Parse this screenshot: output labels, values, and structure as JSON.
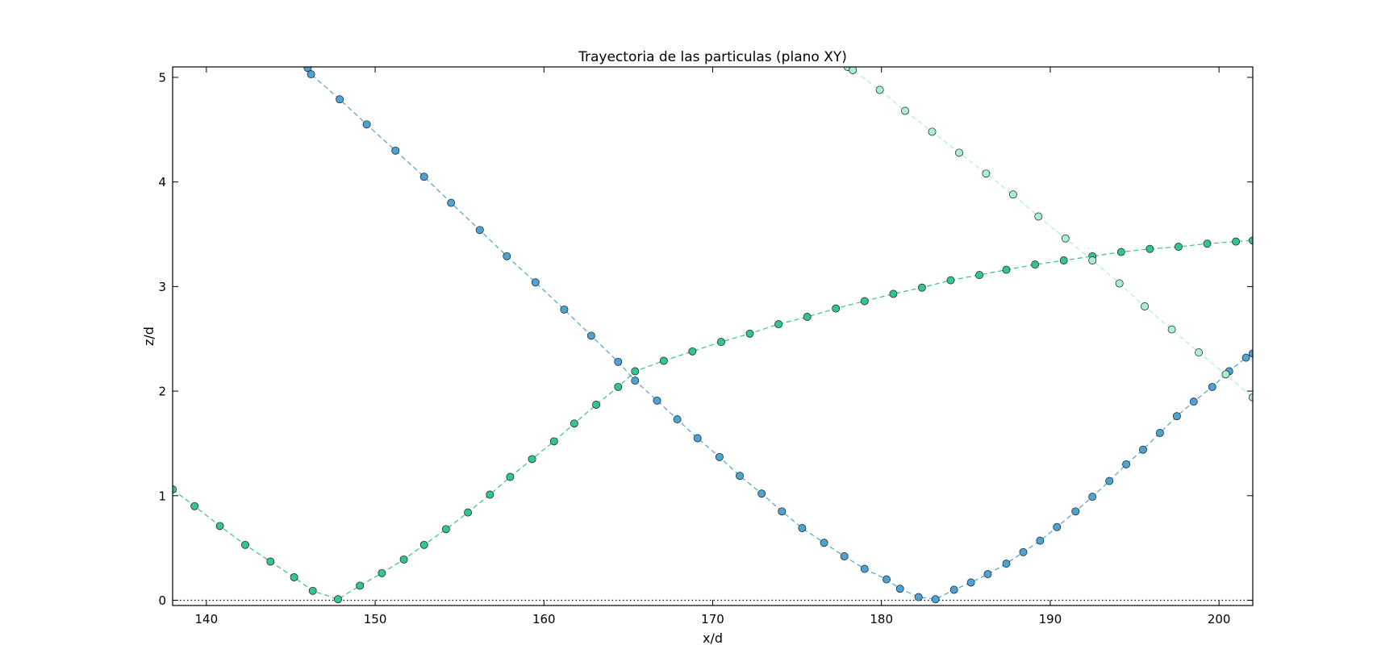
{
  "chart_data": {
    "type": "scatter",
    "title": "Trayectoria de las particulas (plano XY)",
    "xlabel": "x/d",
    "ylabel": "z/d",
    "xlim": [
      138,
      202
    ],
    "ylim": [
      -0.05,
      5.1
    ],
    "x_ticks": [
      140,
      150,
      160,
      170,
      180,
      190,
      200
    ],
    "y_ticks": [
      0,
      1,
      2,
      3,
      4,
      5
    ],
    "grid": false,
    "legend": "none",
    "reference_line": {
      "y": 0,
      "style": "dotted",
      "color": "#000000"
    },
    "series": [
      {
        "color": "#4da3d3",
        "line_style": "dashed",
        "points": [
          [
            146.0,
            5.09
          ],
          [
            146.2,
            5.03
          ],
          [
            147.9,
            4.79
          ],
          [
            149.5,
            4.55
          ],
          [
            151.2,
            4.3
          ],
          [
            152.9,
            4.05
          ],
          [
            154.5,
            3.8
          ],
          [
            156.2,
            3.54
          ],
          [
            157.8,
            3.29
          ],
          [
            159.5,
            3.04
          ],
          [
            161.2,
            2.78
          ],
          [
            162.8,
            2.53
          ],
          [
            164.4,
            2.28
          ],
          [
            165.4,
            2.1
          ],
          [
            166.7,
            1.91
          ],
          [
            167.9,
            1.73
          ],
          [
            169.1,
            1.55
          ],
          [
            170.4,
            1.37
          ],
          [
            171.6,
            1.19
          ],
          [
            172.9,
            1.02
          ],
          [
            174.1,
            0.85
          ],
          [
            175.3,
            0.69
          ],
          [
            176.6,
            0.55
          ],
          [
            177.8,
            0.42
          ],
          [
            179.0,
            0.3
          ],
          [
            180.3,
            0.2
          ],
          [
            181.1,
            0.11
          ],
          [
            182.2,
            0.03
          ],
          [
            183.2,
            0.01
          ],
          [
            184.3,
            0.1
          ],
          [
            185.3,
            0.17
          ],
          [
            186.3,
            0.25
          ],
          [
            187.4,
            0.35
          ],
          [
            188.4,
            0.46
          ],
          [
            189.4,
            0.57
          ],
          [
            190.4,
            0.7
          ],
          [
            191.5,
            0.85
          ],
          [
            192.5,
            0.99
          ],
          [
            193.5,
            1.14
          ],
          [
            194.5,
            1.3
          ],
          [
            195.5,
            1.44
          ],
          [
            196.5,
            1.6
          ],
          [
            197.5,
            1.76
          ],
          [
            198.5,
            1.9
          ],
          [
            199.6,
            2.04
          ],
          [
            200.6,
            2.19
          ],
          [
            201.6,
            2.32
          ],
          [
            202.0,
            2.36
          ]
        ]
      },
      {
        "color": "#34c48d",
        "line_style": "dashed",
        "points": [
          [
            138.0,
            1.06
          ],
          [
            139.3,
            0.9
          ],
          [
            140.8,
            0.71
          ],
          [
            142.3,
            0.53
          ],
          [
            143.8,
            0.37
          ],
          [
            145.2,
            0.22
          ],
          [
            146.3,
            0.09
          ],
          [
            147.8,
            0.01
          ],
          [
            149.1,
            0.14
          ],
          [
            150.4,
            0.26
          ],
          [
            151.7,
            0.39
          ],
          [
            152.9,
            0.53
          ],
          [
            154.2,
            0.68
          ],
          [
            155.5,
            0.84
          ],
          [
            156.8,
            1.01
          ],
          [
            158.0,
            1.18
          ],
          [
            159.3,
            1.35
          ],
          [
            160.6,
            1.52
          ],
          [
            161.8,
            1.69
          ],
          [
            163.1,
            1.87
          ],
          [
            164.4,
            2.04
          ],
          [
            165.4,
            2.19
          ],
          [
            167.1,
            2.29
          ],
          [
            168.8,
            2.38
          ],
          [
            170.5,
            2.47
          ],
          [
            172.2,
            2.55
          ],
          [
            173.9,
            2.64
          ],
          [
            175.6,
            2.71
          ],
          [
            177.3,
            2.79
          ],
          [
            179.0,
            2.86
          ],
          [
            180.7,
            2.93
          ],
          [
            182.4,
            2.99
          ],
          [
            184.1,
            3.06
          ],
          [
            185.8,
            3.11
          ],
          [
            187.4,
            3.16
          ],
          [
            189.1,
            3.21
          ],
          [
            190.8,
            3.25
          ],
          [
            192.5,
            3.29
          ],
          [
            194.2,
            3.33
          ],
          [
            195.9,
            3.36
          ],
          [
            197.6,
            3.38
          ],
          [
            199.3,
            3.41
          ],
          [
            201.0,
            3.43
          ],
          [
            202.0,
            3.44
          ]
        ]
      },
      {
        "color": "#a9efd8",
        "line_style": "dashed",
        "points": [
          [
            178.0,
            5.1
          ],
          [
            178.3,
            5.07
          ],
          [
            179.9,
            4.88
          ],
          [
            181.4,
            4.68
          ],
          [
            183.0,
            4.48
          ],
          [
            184.6,
            4.28
          ],
          [
            186.2,
            4.08
          ],
          [
            187.8,
            3.88
          ],
          [
            189.3,
            3.67
          ],
          [
            190.9,
            3.46
          ],
          [
            192.5,
            3.25
          ],
          [
            194.1,
            3.03
          ],
          [
            195.6,
            2.81
          ],
          [
            197.2,
            2.59
          ],
          [
            198.8,
            2.37
          ],
          [
            200.4,
            2.16
          ],
          [
            202.0,
            1.94
          ]
        ]
      }
    ]
  }
}
